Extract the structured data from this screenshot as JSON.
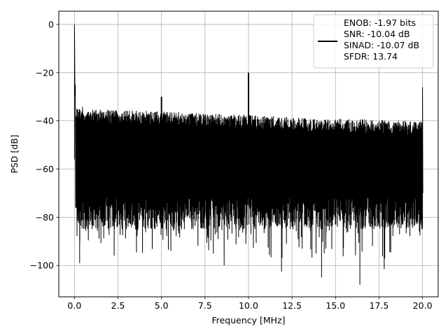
{
  "chart_data": {
    "type": "line",
    "title": "",
    "xlabel": "Frequency [MHz]",
    "ylabel": "PSD [dB]",
    "xlim": [
      -0.9,
      20.9
    ],
    "ylim": [
      -113,
      5.5
    ],
    "xticks": [
      0.0,
      2.5,
      5.0,
      7.5,
      10.0,
      12.5,
      15.0,
      17.5,
      20.0
    ],
    "xtick_labels": [
      "0.0",
      "2.5",
      "5.0",
      "7.5",
      "10.0",
      "12.5",
      "15.0",
      "17.5",
      "20.0"
    ],
    "yticks": [
      0,
      -20,
      -40,
      -60,
      -80,
      -100
    ],
    "ytick_labels": [
      "0",
      "−20",
      "−40",
      "−60",
      "−80",
      "−100"
    ],
    "grid": true,
    "legend_position": "top-right",
    "series": [
      {
        "name": "ENOB: -1.97 bits\nSNR: -10.04 dB\nSINAD: -10.07 dB\nSFDR: 13.74",
        "color": "#000000",
        "noise_ceiling": [
          [
            0.1,
            -34
          ],
          [
            2.5,
            -35.5
          ],
          [
            5,
            -36
          ],
          [
            7.5,
            -37
          ],
          [
            10,
            -37.5
          ],
          [
            12.5,
            -38.5
          ],
          [
            15,
            -39
          ],
          [
            17.5,
            -39.5
          ],
          [
            20,
            -40
          ]
        ],
        "noise_floor_typical": -78,
        "peaks": [
          {
            "x": 0.0,
            "y": 0
          },
          {
            "x": 0.05,
            "y": -25
          },
          {
            "x": 5.0,
            "y": -30
          },
          {
            "x": 10.0,
            "y": -20
          },
          {
            "x": 20.0,
            "y": -26
          }
        ],
        "dips": [
          {
            "x": 0.3,
            "y": -99
          },
          {
            "x": 8.6,
            "y": -100
          },
          {
            "x": 11.9,
            "y": -102.5
          },
          {
            "x": 14.2,
            "y": -105
          },
          {
            "x": 16.4,
            "y": -108
          },
          {
            "x": 17.8,
            "y": -101.5
          }
        ]
      }
    ]
  }
}
